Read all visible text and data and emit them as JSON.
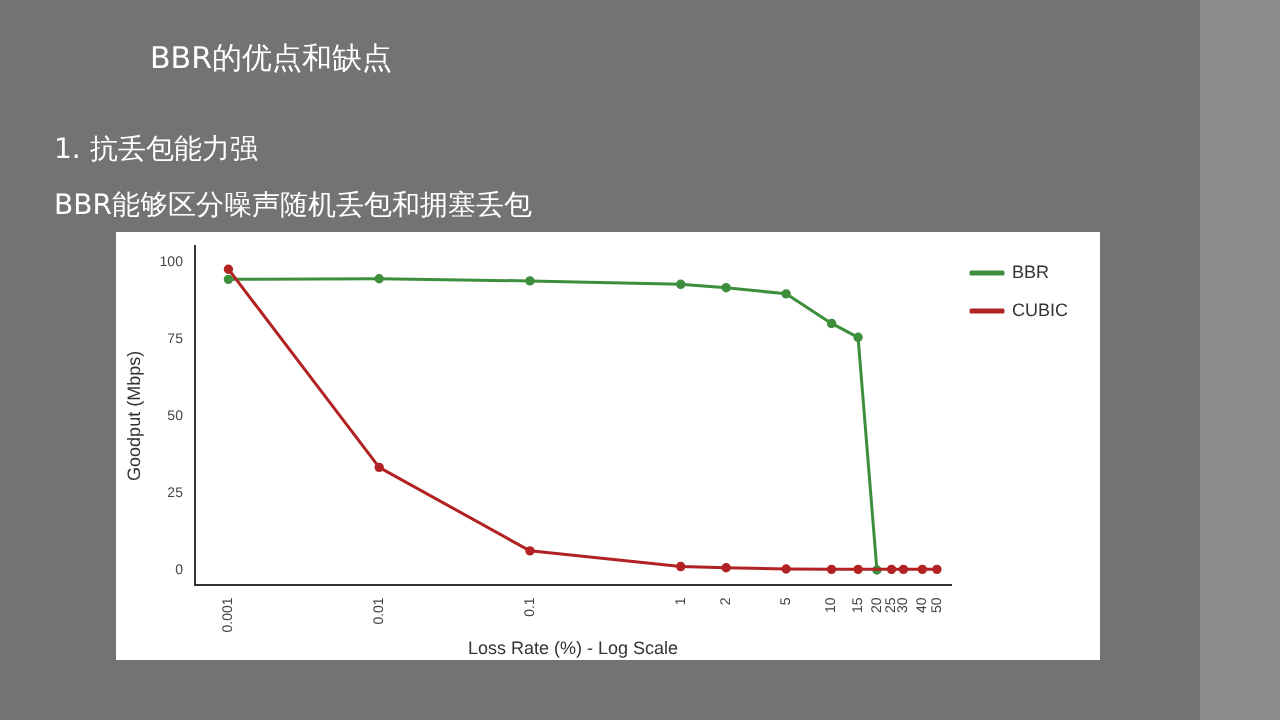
{
  "chart_data": {
    "type": "line",
    "title": "BBR的优点和缺点",
    "subtitle": "1.  抗丢包能力强",
    "annotations": [
      "BBR能够区分噪声随机丢包和拥塞丢包"
    ],
    "xlabel": "Loss Rate (%) - Log Scale",
    "ylabel": "Goodput (Mbps)",
    "x": [
      0.001,
      0.01,
      0.1,
      1,
      2,
      5,
      10,
      15,
      20,
      25,
      30,
      40,
      50
    ],
    "series": [
      {
        "name": "BBR",
        "color": "#3d8f3d",
        "values": [
          94.3,
          94.5,
          93.8,
          92.7,
          91.6,
          89.6,
          80,
          75.5,
          0,
          null,
          null,
          null,
          null
        ]
      },
      {
        "name": "CUBIC",
        "color": "#b22222",
        "values": [
          97.6,
          33.3,
          6.2,
          1.1,
          0.7,
          0.3,
          0.2,
          0.2,
          null,
          0.2,
          0.2,
          0.2,
          0.2
        ]
      }
    ],
    "log": "x",
    "xlim": [
      0.0006,
      62
    ],
    "xticks": [
      0.001,
      0.01,
      0.1,
      1,
      2,
      5,
      10,
      15,
      20,
      25,
      30,
      40,
      50
    ],
    "ylim": [
      -5,
      105
    ],
    "yticks": [
      0,
      25,
      50,
      75,
      100
    ],
    "grid": false,
    "legend": "top right",
    "marker": "circle",
    "line_style": "solid"
  }
}
